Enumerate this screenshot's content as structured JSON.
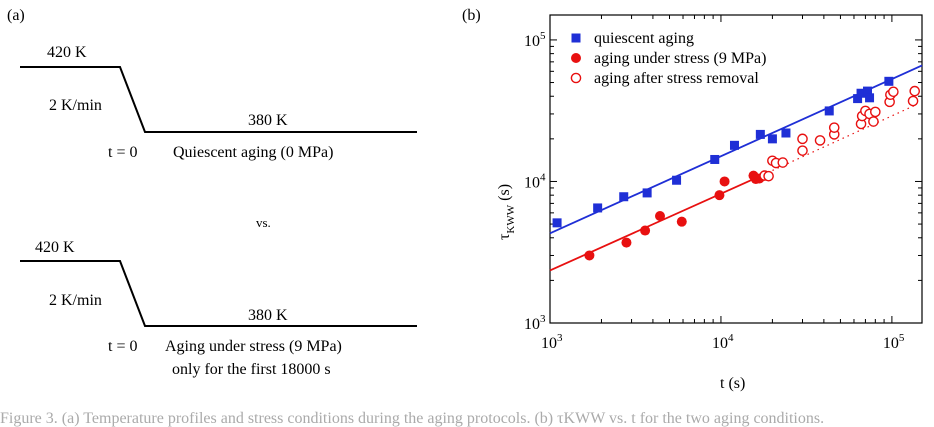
{
  "panel_a": {
    "label": "(a)",
    "top": {
      "temp_start": "420 K",
      "rate": "2 K/min",
      "temp_end": "380 K",
      "t0": "t = 0",
      "caption": "Quiescent aging (0 MPa)"
    },
    "vs": "vs.",
    "bottom": {
      "temp_start": "420 K",
      "rate": "2 K/min",
      "temp_end": "380 K",
      "t0": "t = 0",
      "caption_line1": "Aging under stress (9 MPa)",
      "caption_line2": "only for the first 18000 s"
    }
  },
  "colors": {
    "blue": "#1f2fd6",
    "red": "#e81010"
  },
  "chart_data": {
    "type": "scatter",
    "panel_label": "(b)",
    "xlabel": "t (s)",
    "ylabel_main": "τ",
    "ylabel_sub": "KWW",
    "ylabel_unit": "(s)",
    "x_scale": "log",
    "y_scale": "log",
    "xlim": [
      1000,
      150000
    ],
    "ylim": [
      1000,
      150000
    ],
    "x_ticks": [
      {
        "value": 1000,
        "base": "10",
        "exp": "3"
      },
      {
        "value": 10000,
        "base": "10",
        "exp": "4"
      },
      {
        "value": 100000,
        "base": "10",
        "exp": "5"
      }
    ],
    "y_ticks": [
      {
        "value": 1000,
        "base": "10",
        "exp": "3"
      },
      {
        "value": 10000,
        "base": "10",
        "exp": "4"
      },
      {
        "value": 100000,
        "base": "10",
        "exp": "5"
      }
    ],
    "legend_position": "top-left",
    "series": [
      {
        "name": "quiescent aging",
        "marker": "filled-square",
        "color": "#1f2fd6",
        "points": [
          [
            1100,
            5100
          ],
          [
            1900,
            6500
          ],
          [
            2700,
            7800
          ],
          [
            3700,
            8300
          ],
          [
            5500,
            10200
          ],
          [
            9200,
            14300
          ],
          [
            12000,
            18000
          ],
          [
            17000,
            21500
          ],
          [
            20000,
            20000
          ],
          [
            24000,
            22000
          ],
          [
            43000,
            31500
          ],
          [
            63000,
            38500
          ],
          [
            66000,
            42000
          ],
          [
            72000,
            43500
          ],
          [
            74000,
            39000
          ],
          [
            96000,
            51000
          ]
        ],
        "fit_line": {
          "x": [
            1000,
            150000
          ],
          "y": [
            4300,
            66000
          ],
          "style": "solid"
        }
      },
      {
        "name": "aging under stress (9 MPa)",
        "marker": "filled-circle",
        "color": "#e81010",
        "points": [
          [
            1700,
            3000
          ],
          [
            2800,
            3700
          ],
          [
            3600,
            4500
          ],
          [
            4400,
            5700
          ],
          [
            5900,
            5200
          ],
          [
            9800,
            8000
          ],
          [
            10500,
            10000
          ],
          [
            15500,
            11000
          ],
          [
            16000,
            10400
          ],
          [
            16800,
            10500
          ]
        ],
        "fit_line": {
          "x": [
            1000,
            17500
          ],
          "y": [
            2350,
            11100
          ],
          "style": "solid"
        }
      },
      {
        "name": "aging after stress removal",
        "marker": "open-circle",
        "color": "#e81010",
        "points": [
          [
            18000,
            11000
          ],
          [
            19000,
            10900
          ],
          [
            20000,
            14000
          ],
          [
            21000,
            13500
          ],
          [
            23000,
            13600
          ],
          [
            30000,
            16500
          ],
          [
            30000,
            20000
          ],
          [
            38000,
            19500
          ],
          [
            46000,
            21500
          ],
          [
            46000,
            24000
          ],
          [
            66000,
            25500
          ],
          [
            67000,
            29000
          ],
          [
            70000,
            31500
          ],
          [
            74000,
            30000
          ],
          [
            78000,
            26500
          ],
          [
            80000,
            31000
          ],
          [
            97000,
            36500
          ],
          [
            98000,
            41000
          ],
          [
            102000,
            43000
          ],
          [
            133000,
            37000
          ],
          [
            136000,
            43500
          ]
        ],
        "fit_line": {
          "x": [
            17500,
            140000
          ],
          "y": [
            11100,
            35000
          ],
          "style": "dotted"
        }
      }
    ]
  },
  "caption_strip": "Figure 3. (a) Temperature profiles and stress conditions during the aging protocols. (b) τKWW vs. t for the two aging conditions."
}
